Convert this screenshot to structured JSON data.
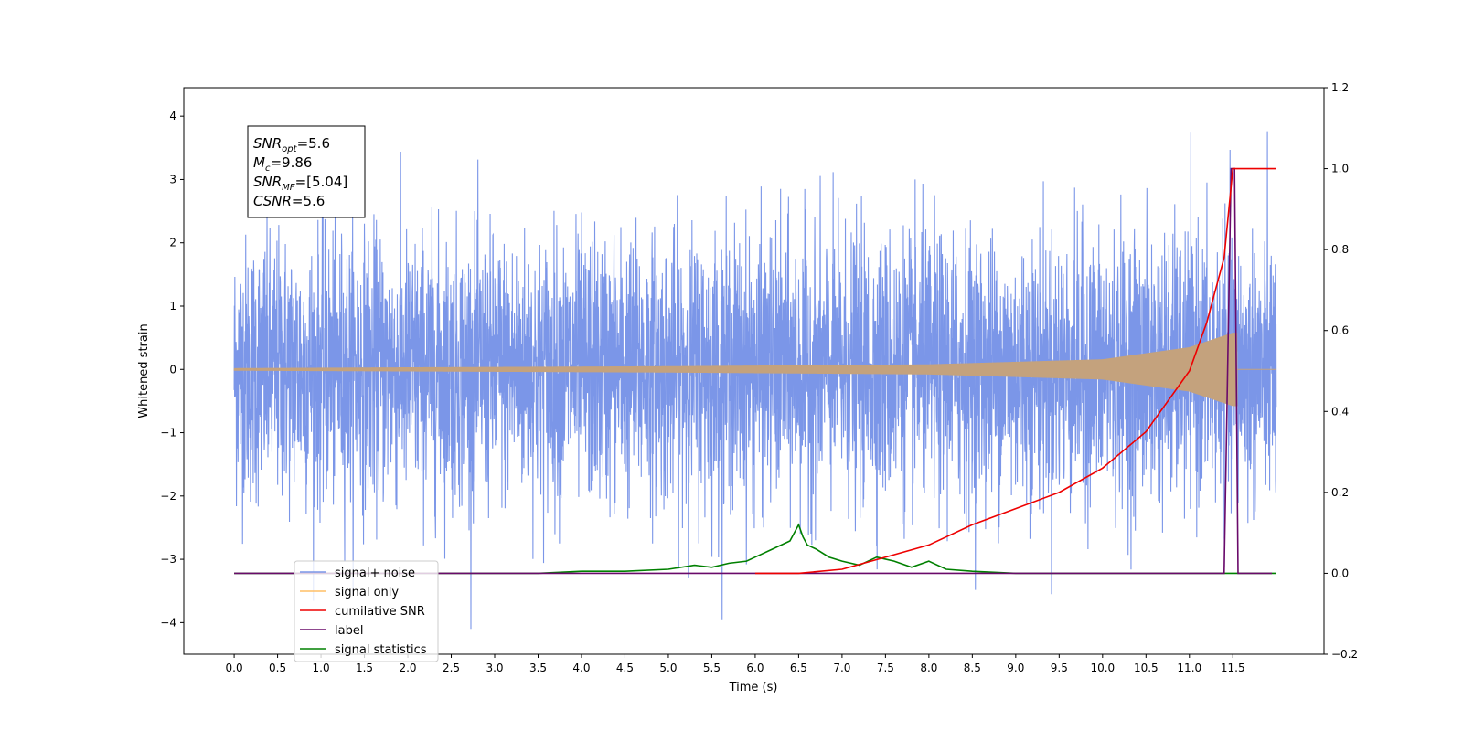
{
  "chart_data": {
    "type": "line",
    "xlabel": "Time (s)",
    "ylabel": "Whitened strain",
    "xlim": [
      -0.58,
      12.55
    ],
    "ylim": [
      -4.5,
      4.45
    ],
    "y2lim": [
      -0.2,
      1.2
    ],
    "x_ticks": [
      "0.0",
      "0.5",
      "1.0",
      "1.5",
      "2.0",
      "2.5",
      "3.0",
      "3.5",
      "4.0",
      "4.5",
      "5.0",
      "5.5",
      "6.0",
      "6.5",
      "7.0",
      "7.5",
      "8.0",
      "8.5",
      "9.0",
      "9.5",
      "10.0",
      "10.5",
      "11.0",
      "11.5"
    ],
    "y_ticks": [
      4,
      3,
      2,
      1,
      0,
      -1,
      -2,
      -3,
      -4
    ],
    "y_tick_labels": [
      "4",
      "3",
      "2",
      "1",
      "0",
      "−1",
      "−2",
      "−3",
      "−4"
    ],
    "y2_ticks": [
      1.2,
      1.0,
      0.8,
      0.6,
      0.4,
      0.2,
      0.0,
      -0.2
    ],
    "y2_tick_labels": [
      "1.2",
      "1.0",
      "0.8",
      "0.6",
      "0.4",
      "0.2",
      "0.0",
      "−0.2"
    ],
    "annotation": {
      "lines": [
        {
          "sym": "SNR",
          "sub": "opt",
          "val": "=5.6"
        },
        {
          "sym": "M",
          "sub": "c",
          "val": "=9.86"
        },
        {
          "sym": "SNR",
          "sub": "MF",
          "val": "=[5.04]"
        },
        {
          "sym": "CSNR",
          "sub": "",
          "val": "=5.6"
        }
      ]
    },
    "legend": {
      "placement": "lower-left",
      "entries": [
        {
          "label": "signal+ noise",
          "color": "#7b96e8"
        },
        {
          "label": "signal only",
          "color": "#ffbf66"
        },
        {
          "label": "cumilative SNR",
          "color": "#ee0000"
        },
        {
          "label": "label",
          "color": "#6a0a6a"
        },
        {
          "label": "signal statistics",
          "color": "#008000"
        }
      ]
    },
    "series": [
      {
        "name": "signal+ noise",
        "axis": "left",
        "x_range": [
          0.0,
          12.0
        ],
        "noise_std": 1.05,
        "spike_min": -4.1,
        "spike_max": 4.05,
        "color": "#7b96e8"
      },
      {
        "name": "signal only",
        "axis": "left",
        "x_range": [
          0.0,
          11.55
        ],
        "chirp_envelope": [
          [
            0.0,
            0.02
          ],
          [
            5.0,
            0.05
          ],
          [
            8.0,
            0.08
          ],
          [
            10.0,
            0.16
          ],
          [
            11.0,
            0.35
          ],
          [
            11.5,
            0.58
          ]
        ],
        "color": "#c4a27d"
      },
      {
        "name": "cumilative SNR",
        "axis": "right",
        "x": [
          6.0,
          6.5,
          7.0,
          7.5,
          8.0,
          8.5,
          9.0,
          9.5,
          10.0,
          10.5,
          11.0,
          11.2,
          11.4,
          11.5,
          11.6,
          12.0
        ],
        "values": [
          0.0,
          0.0,
          0.01,
          0.04,
          0.07,
          0.12,
          0.16,
          0.2,
          0.26,
          0.35,
          0.5,
          0.62,
          0.78,
          1.0,
          1.0,
          1.0
        ],
        "color": "#ee0000"
      },
      {
        "name": "label",
        "axis": "right",
        "x": [
          0.0,
          11.4,
          11.48,
          11.52,
          11.56,
          11.6,
          11.95
        ],
        "values": [
          0.0,
          0.0,
          1.0,
          1.0,
          0.0,
          0.0,
          0.0
        ],
        "color": "#6a0a6a"
      },
      {
        "name": "signal statistics",
        "axis": "right",
        "x": [
          0.0,
          2.5,
          3.0,
          3.5,
          4.0,
          4.5,
          5.0,
          5.3,
          5.5,
          5.7,
          5.9,
          6.0,
          6.2,
          6.4,
          6.5,
          6.55,
          6.6,
          6.7,
          6.85,
          7.0,
          7.2,
          7.4,
          7.5,
          7.6,
          7.8,
          8.0,
          8.2,
          8.5,
          9.0,
          12.0
        ],
        "values": [
          0.0,
          0.0,
          0.0,
          0.0,
          0.005,
          0.005,
          0.01,
          0.02,
          0.015,
          0.025,
          0.03,
          0.04,
          0.06,
          0.08,
          0.12,
          0.09,
          0.07,
          0.06,
          0.04,
          0.03,
          0.02,
          0.04,
          0.035,
          0.03,
          0.015,
          0.03,
          0.01,
          0.005,
          0.0,
          0.0
        ],
        "color": "#008000"
      }
    ]
  }
}
